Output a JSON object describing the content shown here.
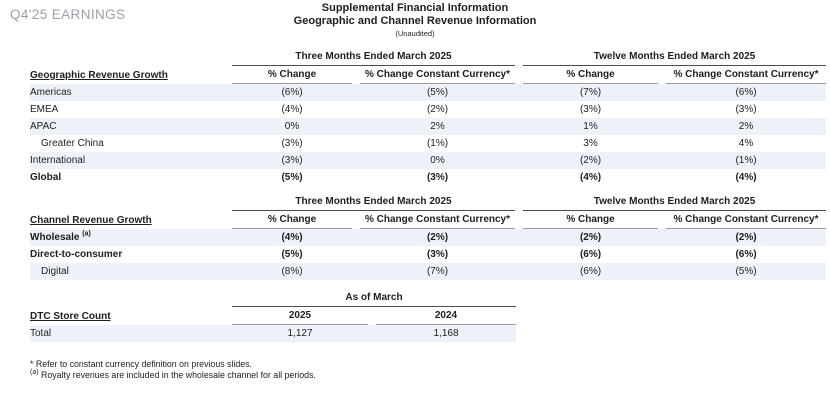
{
  "page": {
    "slide_label": "Q4'25 EARNINGS",
    "title_line1": "Supplemental Financial Information",
    "title_line2": "Geographic and Channel Revenue Information",
    "title_line3": "(Unaudited)"
  },
  "colors": {
    "stripe": "#edf1f8",
    "muted_label": "#9ba0a8",
    "rule_dark": "#4d4d4d",
    "rule_light": "#9b9b9b"
  },
  "period_headers": {
    "three_months": "Three Months Ended March 2025",
    "twelve_months": "Twelve Months Ended March 2025",
    "pct_change": "% Change",
    "pct_change_cc": "% Change Constant Currency*"
  },
  "geographic_table": {
    "section_label": "Geographic Revenue Growth",
    "rows": [
      {
        "label": "Americas",
        "values": [
          "(6%)",
          "(5%)",
          "(7%)",
          "(6%)"
        ]
      },
      {
        "label": "EMEA",
        "values": [
          "(4%)",
          "(2%)",
          "(3%)",
          "(3%)"
        ]
      },
      {
        "label": "APAC",
        "values": [
          "0%",
          "2%",
          "1%",
          "2%"
        ]
      },
      {
        "label": "Greater China",
        "values": [
          "(3%)",
          "(1%)",
          "3%",
          "4%"
        ]
      },
      {
        "label": "International",
        "values": [
          "(3%)",
          "0%",
          "(2%)",
          "(1%)"
        ]
      },
      {
        "label": "Global",
        "values": [
          "(5%)",
          "(3%)",
          "(4%)",
          "(4%)"
        ]
      }
    ]
  },
  "channel_table": {
    "section_label": "Channel Revenue Growth",
    "rows": [
      {
        "label": "Wholesale",
        "superscript": "(a)",
        "values": [
          "(4%)",
          "(2%)",
          "(2%)",
          "(2%)"
        ]
      },
      {
        "label": "Direct-to-consumer",
        "values": [
          "(5%)",
          "(3%)",
          "(6%)",
          "(6%)"
        ]
      },
      {
        "label": "Digital",
        "values": [
          "(8%)",
          "(7%)",
          "(6%)",
          "(5%)"
        ]
      }
    ]
  },
  "store_table": {
    "section_label": "DTC Store Count",
    "group_header": "As of March",
    "col_headers": [
      "2025",
      "2024"
    ],
    "rows": [
      {
        "label": "Total",
        "values": [
          "1,127",
          "1,168"
        ]
      }
    ]
  },
  "footnotes": {
    "line1": "* Refer to constant currency definition on previous slides.",
    "line2_superscript": "(a)",
    "line2_text": "Royalty revenues are included in the wholesale channel for all periods."
  }
}
